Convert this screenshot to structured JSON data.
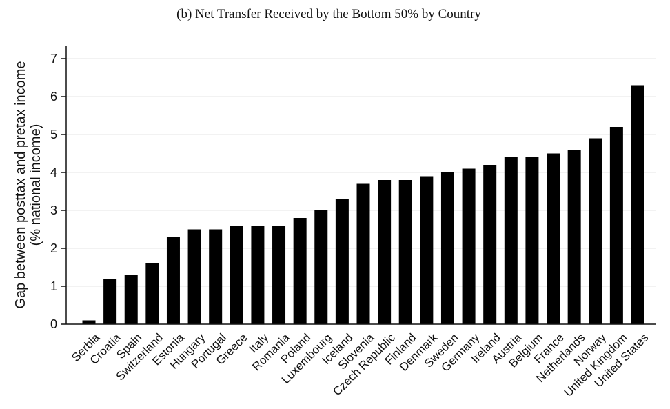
{
  "chart_data": {
    "type": "bar",
    "title": "(b) Net Transfer Received by the Bottom 50% by Country",
    "ylabel_line1": "Gap between posttax and pretax income",
    "ylabel_line2": "(% national income)",
    "xlabel": "",
    "ylim": [
      0,
      7
    ],
    "yticks": [
      0,
      1,
      2,
      3,
      4,
      5,
      6,
      7
    ],
    "grid": true,
    "bar_color": "#000000",
    "categories": [
      "Serbia",
      "Croatia",
      "Spain",
      "Switzerland",
      "Estonia",
      "Hungary",
      "Portugal",
      "Greece",
      "Italy",
      "Romania",
      "Poland",
      "Luxembourg",
      "Iceland",
      "Slovenia",
      "Czech Republic",
      "Finland",
      "Denmark",
      "Sweden",
      "Germany",
      "Ireland",
      "Austria",
      "Belgium",
      "France",
      "Netherlands",
      "Norway",
      "United Kingdom",
      "United States"
    ],
    "values": [
      0.1,
      1.2,
      1.3,
      1.6,
      2.3,
      2.5,
      2.5,
      2.6,
      2.6,
      2.6,
      2.8,
      3.0,
      3.3,
      3.7,
      3.8,
      3.8,
      3.9,
      4.0,
      4.1,
      4.2,
      4.4,
      4.4,
      4.5,
      4.6,
      4.9,
      5.2,
      6.3
    ]
  }
}
